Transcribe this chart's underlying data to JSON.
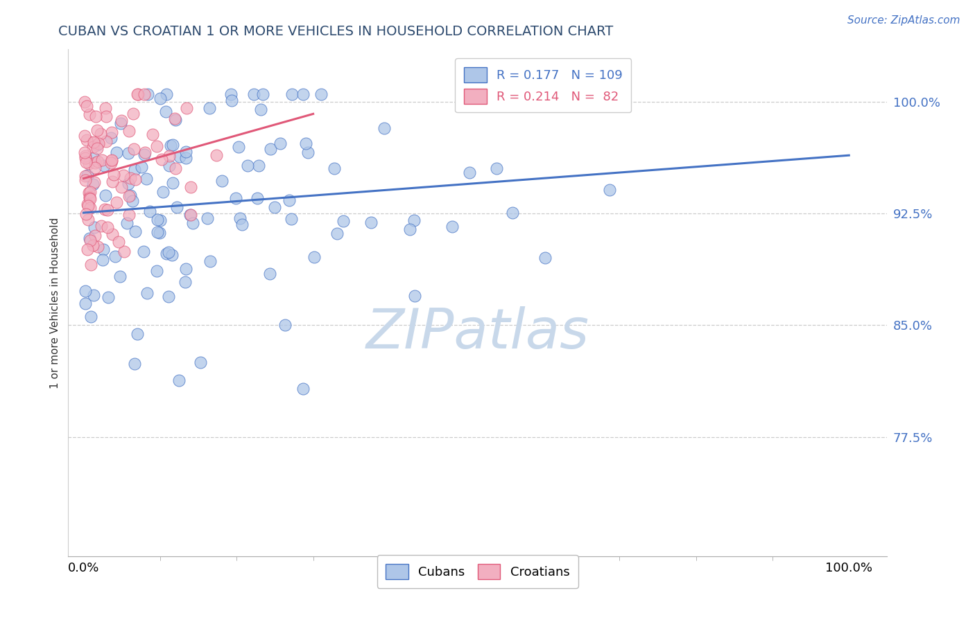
{
  "title": "CUBAN VS CROATIAN 1 OR MORE VEHICLES IN HOUSEHOLD CORRELATION CHART",
  "source_text": "Source: ZipAtlas.com",
  "ylabel": "1 or more Vehicles in Household",
  "cuban_R": 0.177,
  "cuban_N": 109,
  "croatian_R": 0.214,
  "croatian_N": 82,
  "cuban_color": "#aec6e8",
  "croatian_color": "#f2afc0",
  "cuban_line_color": "#4472c4",
  "croatian_line_color": "#e05878",
  "watermark_color": "#c8d8ea",
  "legend_labels": [
    "Cubans",
    "Croatians"
  ],
  "ytick_positions": [
    0.775,
    0.85,
    0.925,
    1.0
  ],
  "ytick_labels": [
    "77.5%",
    "85.0%",
    "92.5%",
    "100.0%"
  ],
  "xtick_positions": [
    0,
    100
  ],
  "xtick_labels": [
    "0.0%",
    "100.0%"
  ],
  "xlim": [
    -2,
    105
  ],
  "ylim": [
    0.695,
    1.035
  ],
  "title_color": "#2d4a6e",
  "source_color": "#4472c4",
  "tick_color": "#4472c4",
  "tick_fontsize": 13,
  "legend_fontsize": 13,
  "title_fontsize": 14
}
